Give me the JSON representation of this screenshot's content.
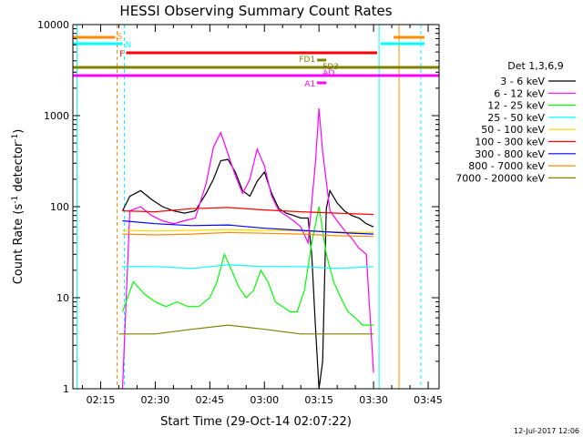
{
  "footer": {
    "date_stamp": "12-Jul-2017 12:06"
  },
  "chart_data": {
    "type": "line",
    "title": "HESSI Observing Summary Count Rates",
    "xlabel": "Start Time (29-Oct-14 02:07:22)",
    "ylabel": "Count Rate (s^-1 detector^-1)",
    "ylabel_parts": {
      "base": "Count Rate (s",
      "exp1": "-1",
      "mid": " detector",
      "exp2": "-1",
      "end": ")"
    },
    "y_scale": "log",
    "ylim": [
      1,
      10000
    ],
    "xlim": [
      "02:07:22",
      "03:48:00"
    ],
    "x_ticks": [
      "02:15",
      "02:30",
      "02:45",
      "03:00",
      "03:15",
      "03:30",
      "03:45"
    ],
    "y_ticks": [
      "1",
      "10",
      "100",
      "1000",
      "10000"
    ],
    "grid": false,
    "legend": {
      "placement": "right",
      "title": "Det 1,3,6,9",
      "entries": [
        {
          "label": "3 - 6 keV",
          "color": "#000000"
        },
        {
          "label": "6 - 12 keV",
          "color": "#ff00ff"
        },
        {
          "label": "12 - 25 keV",
          "color": "#00ff00"
        },
        {
          "label": "25 - 50 keV",
          "color": "#00ffff"
        },
        {
          "label": "50 - 100 keV",
          "color": "#ffd700"
        },
        {
          "label": "100 - 300 keV",
          "color": "#ff0000"
        },
        {
          "label": "300 - 800 keV",
          "color": "#0000ff"
        },
        {
          "label": "800 - 7000 keV",
          "color": "#ff8c00"
        },
        {
          "label": "7000 - 20000 keV",
          "color": "#808000"
        }
      ]
    },
    "flag_bars": [
      {
        "label": "S",
        "color": "#ff8c00",
        "segments": [
          [
            "02:07:22",
            "02:19:00"
          ],
          [
            "03:35:30",
            "03:44:00"
          ]
        ]
      },
      {
        "label": "N",
        "color": "#00ffff",
        "segments": [
          [
            "02:07:22",
            "02:21:00"
          ],
          [
            "03:32:00",
            "03:44:00"
          ]
        ]
      },
      {
        "label": "F",
        "color": "#ff0000",
        "segments": [
          [
            "02:22:00",
            "03:31:00"
          ]
        ]
      },
      {
        "label": "FD1",
        "color": "#808000",
        "segments": [
          [
            "03:14:30",
            "03:17:00"
          ]
        ]
      },
      {
        "label": "FD3",
        "color": "#808000",
        "segments": [
          [
            "02:07:22",
            "03:48:00"
          ]
        ]
      },
      {
        "label": "AD",
        "color": "#ff00ff",
        "segments": [
          [
            "02:07:22",
            "03:48:00"
          ]
        ]
      },
      {
        "label": "A1",
        "color": "#ff00ff",
        "segments": [
          [
            "03:14:30",
            "03:17:00"
          ]
        ]
      }
    ],
    "vertical_lines": [
      {
        "time": "02:08:30",
        "color": "#00ffff",
        "style": "solid"
      },
      {
        "time": "02:19:30",
        "color": "#ff8c00",
        "style": "dashed"
      },
      {
        "time": "02:21:30",
        "color": "#00ffff",
        "style": "dashed"
      },
      {
        "time": "03:31:30",
        "color": "#00ffff",
        "style": "solid"
      },
      {
        "time": "03:37:00",
        "color": "#ff8c00",
        "style": "solid"
      },
      {
        "time": "03:43:00",
        "color": "#00ffff",
        "style": "dashed"
      }
    ],
    "series": [
      {
        "name": "3 - 6 keV",
        "color": "#000000",
        "x": [
          "02:21",
          "02:23",
          "02:26",
          "02:29",
          "02:32",
          "02:35",
          "02:38",
          "02:41",
          "02:44",
          "02:46",
          "02:48",
          "02:50",
          "02:52",
          "02:54",
          "02:56",
          "02:58",
          "03:00",
          "03:02",
          "03:04",
          "03:06",
          "03:08",
          "03:10",
          "03:12",
          "03:13",
          "03:14",
          "03:15",
          "03:16",
          "03:17",
          "03:18",
          "03:20",
          "03:22",
          "03:24",
          "03:26",
          "03:28",
          "03:30"
        ],
        "values": [
          90,
          130,
          150,
          120,
          100,
          90,
          85,
          90,
          140,
          200,
          320,
          330,
          240,
          150,
          130,
          190,
          240,
          140,
          95,
          85,
          80,
          75,
          75,
          30,
          5,
          1,
          2,
          95,
          150,
          110,
          90,
          80,
          75,
          65,
          60
        ]
      },
      {
        "name": "6 - 12 keV",
        "color": "#ff00ff",
        "x": [
          "02:21",
          "02:23",
          "02:26",
          "02:29",
          "02:32",
          "02:35",
          "02:38",
          "02:41",
          "02:44",
          "02:46",
          "02:48",
          "02:50",
          "02:52",
          "02:54",
          "02:56",
          "02:58",
          "03:00",
          "03:02",
          "03:04",
          "03:06",
          "03:08",
          "03:10",
          "03:12",
          "03:14",
          "03:15",
          "03:16",
          "03:18",
          "03:20",
          "03:22",
          "03:24",
          "03:26",
          "03:28",
          "03:30"
        ],
        "values": [
          1,
          90,
          100,
          80,
          70,
          65,
          70,
          75,
          180,
          450,
          650,
          380,
          220,
          140,
          200,
          430,
          280,
          130,
          90,
          80,
          70,
          60,
          40,
          300,
          1200,
          400,
          90,
          70,
          55,
          45,
          35,
          30,
          1.5
        ]
      },
      {
        "name": "12 - 25 keV",
        "color": "#00ff00",
        "x": [
          "02:21",
          "02:24",
          "02:27",
          "02:30",
          "02:33",
          "02:36",
          "02:39",
          "02:42",
          "02:45",
          "02:47",
          "02:49",
          "02:51",
          "02:53",
          "02:55",
          "02:57",
          "02:59",
          "03:01",
          "03:03",
          "03:05",
          "03:07",
          "03:09",
          "03:11",
          "03:13",
          "03:15",
          "03:17",
          "03:19",
          "03:21",
          "03:23",
          "03:25",
          "03:27",
          "03:30"
        ],
        "values": [
          7,
          15,
          11,
          9,
          8,
          9,
          8,
          8,
          10,
          15,
          30,
          20,
          13,
          10,
          12,
          20,
          15,
          9,
          8,
          7,
          7,
          12,
          40,
          100,
          30,
          15,
          10,
          7,
          6,
          5,
          5
        ]
      },
      {
        "name": "25 - 50 keV",
        "color": "#00ffff",
        "x": [
          "02:21",
          "02:30",
          "02:40",
          "02:50",
          "03:00",
          "03:10",
          "03:20",
          "03:30"
        ],
        "values": [
          22,
          22,
          21,
          23,
          22,
          22,
          21,
          22
        ]
      },
      {
        "name": "50 - 100 keV",
        "color": "#ffd700",
        "x": [
          "02:21",
          "02:30",
          "02:40",
          "02:50",
          "03:00",
          "03:10",
          "03:20",
          "03:30"
        ],
        "values": [
          55,
          54,
          55,
          56,
          55,
          54,
          53,
          52
        ]
      },
      {
        "name": "100 - 300 keV",
        "color": "#ff0000",
        "x": [
          "02:21",
          "02:30",
          "02:40",
          "02:50",
          "03:00",
          "03:10",
          "03:20",
          "03:30"
        ],
        "values": [
          90,
          88,
          95,
          98,
          92,
          88,
          85,
          82
        ]
      },
      {
        "name": "300 - 800 keV",
        "color": "#0000ff",
        "x": [
          "02:21",
          "02:30",
          "02:40",
          "02:50",
          "03:00",
          "03:10",
          "03:20",
          "03:30"
        ],
        "values": [
          70,
          65,
          62,
          63,
          58,
          55,
          52,
          50
        ]
      },
      {
        "name": "800 - 7000 keV",
        "color": "#ff8c00",
        "x": [
          "02:21",
          "02:30",
          "02:40",
          "02:50",
          "03:00",
          "03:10",
          "03:20",
          "03:30"
        ],
        "values": [
          50,
          49,
          50,
          52,
          51,
          50,
          48,
          47
        ]
      },
      {
        "name": "7000 - 20000 keV",
        "color": "#808000",
        "x": [
          "02:20",
          "02:30",
          "02:40",
          "02:50",
          "03:00",
          "03:10",
          "03:20",
          "03:30"
        ],
        "values": [
          4,
          4,
          4.5,
          5,
          4.5,
          4,
          4,
          4
        ]
      }
    ]
  }
}
